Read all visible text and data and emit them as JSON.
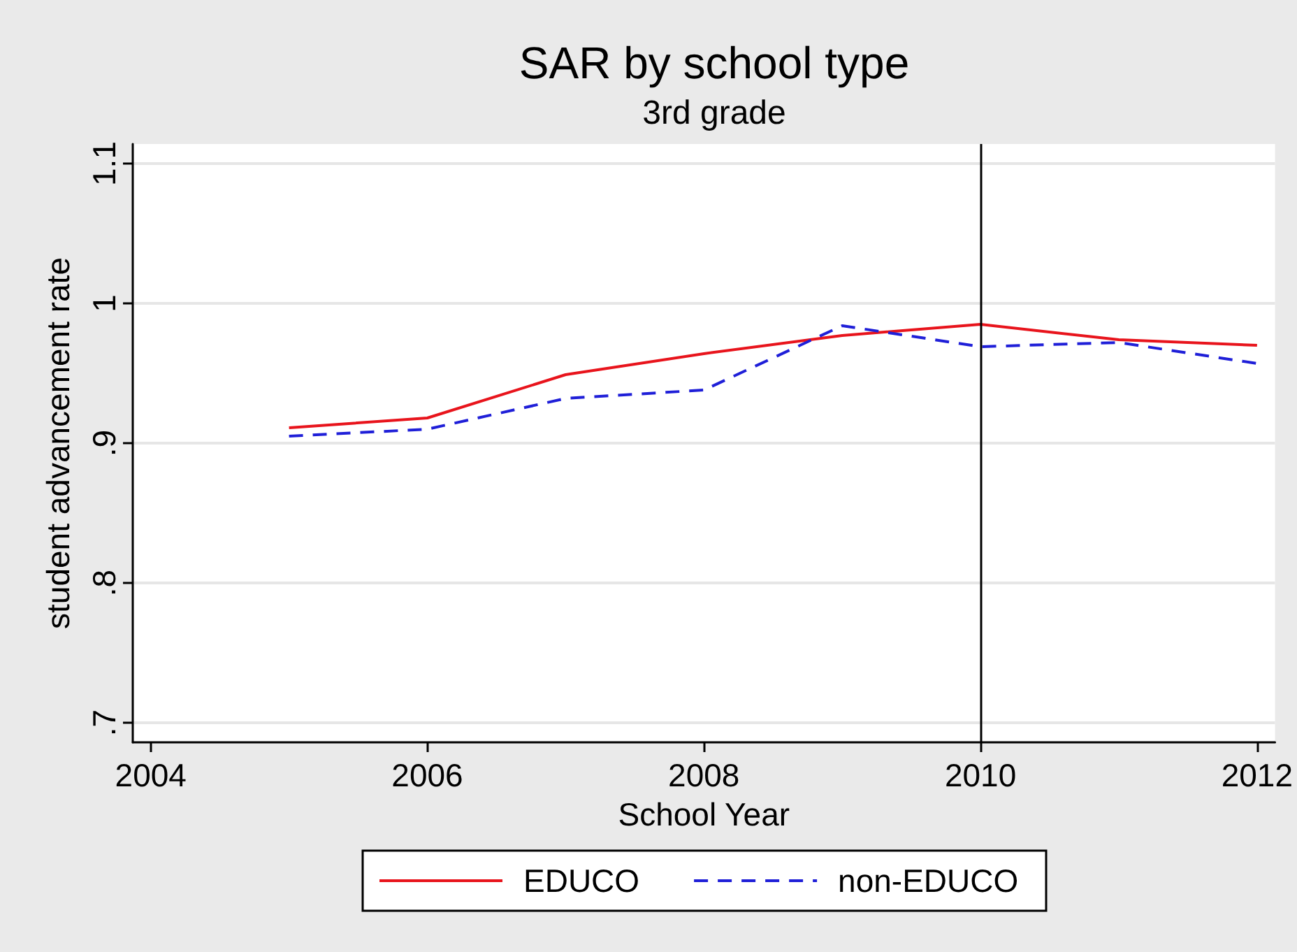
{
  "chart_data": {
    "type": "line",
    "title": "SAR by school type",
    "subtitle": "3rd grade",
    "xlabel": "School Year",
    "ylabel": "student advancement rate",
    "x": [
      2005,
      2006,
      2007,
      2008,
      2009,
      2010,
      2011,
      2012
    ],
    "series": [
      {
        "name": "EDUCO",
        "color": "#e8141c",
        "line_style": "solid",
        "values": [
          0.911,
          0.918,
          0.949,
          0.964,
          0.977,
          0.985,
          0.974,
          0.97
        ]
      },
      {
        "name": "non-EDUCO",
        "color": "#1f1fd8",
        "line_style": "dashed",
        "values": [
          0.905,
          0.91,
          0.932,
          0.938,
          0.984,
          0.969,
          0.972,
          0.957
        ]
      }
    ],
    "xlim": [
      2003.87,
      2012.13
    ],
    "xticks": [
      2004,
      2006,
      2008,
      2010,
      2012
    ],
    "ylim": [
      0.686,
      1.114
    ],
    "yticks": [
      {
        "value": 0.7,
        "label": ".7"
      },
      {
        "value": 0.8,
        "label": ".8"
      },
      {
        "value": 0.9,
        "label": ".9"
      },
      1,
      1.1
    ],
    "ref_lines": [
      {
        "axis": "x",
        "value": 2010,
        "color": "#000000"
      }
    ],
    "grid": "y",
    "legend": "bottom"
  }
}
